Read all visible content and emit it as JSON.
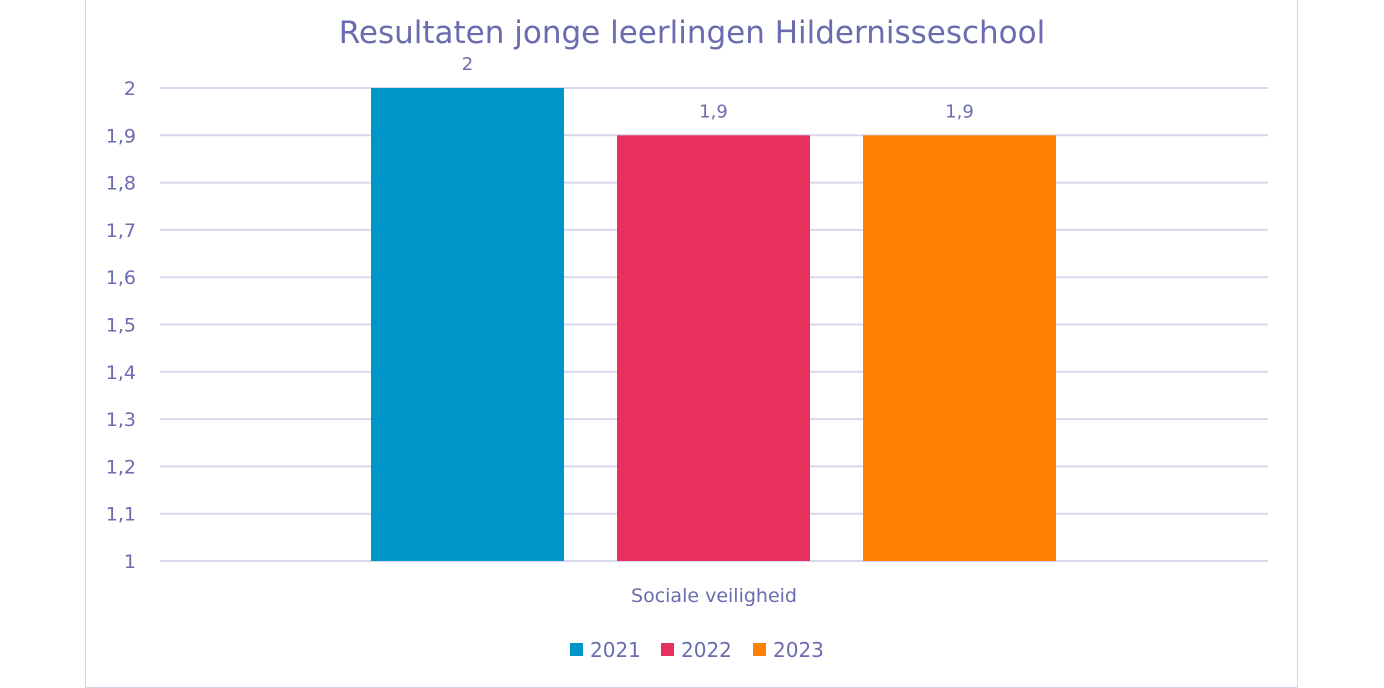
{
  "chart_data": {
    "type": "bar",
    "title": "Resultaten jonge leerlingen Hildernisseschool",
    "categories": [
      "Sociale veiligheid"
    ],
    "series": [
      {
        "name": "2021",
        "values": [
          2
        ],
        "label": "2",
        "color": "#0097c8"
      },
      {
        "name": "2022",
        "values": [
          1.9
        ],
        "label": "1,9",
        "color": "#e8305e"
      },
      {
        "name": "2023",
        "values": [
          1.9
        ],
        "label": "1,9",
        "color": "#ff7f00"
      }
    ],
    "ylim": [
      1,
      2
    ],
    "yticks": [
      "1",
      "1,1",
      "1,2",
      "1,3",
      "1,4",
      "1,5",
      "1,6",
      "1,7",
      "1,8",
      "1,9",
      "2"
    ],
    "grid": true,
    "legend_position": "bottom",
    "gridline_color": "#d9d7ee",
    "text_color": "#6b6bb0"
  }
}
